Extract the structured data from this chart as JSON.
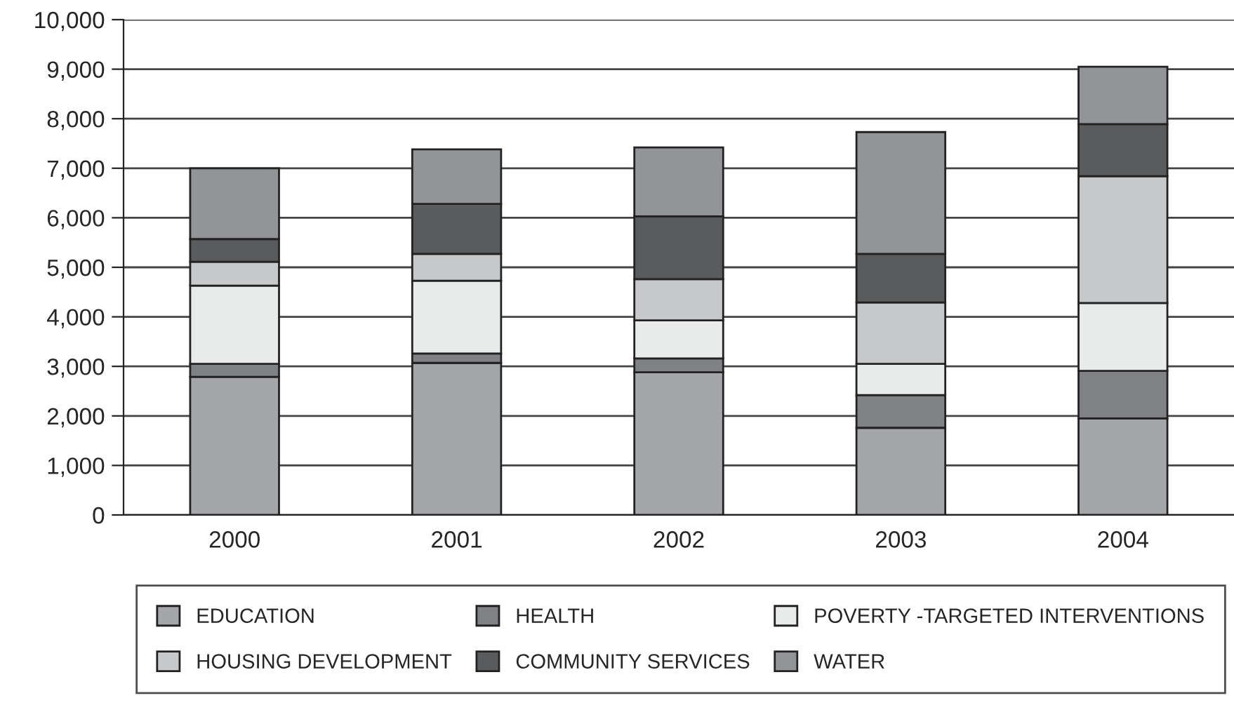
{
  "chart_data": {
    "type": "bar",
    "stacked": true,
    "categories": [
      "2000",
      "2001",
      "2002",
      "2003",
      "2004"
    ],
    "series": [
      {
        "name": "EDUCATION",
        "color": "#a5a6aa",
        "values": [
          2790,
          3070,
          2880,
          1760,
          1950
        ]
      },
      {
        "name": "HEALTH",
        "color": "#808185",
        "values": [
          260,
          190,
          280,
          660,
          960
        ]
      },
      {
        "name": "POVERTY -TARGETED INTERVENTIONS",
        "color": "#e9eaea",
        "values": [
          1580,
          1470,
          770,
          630,
          1370
        ]
      },
      {
        "name": "HOUSING DEVELOPMENT",
        "color": "#c7c8ca",
        "values": [
          480,
          540,
          830,
          1240,
          2560
        ]
      },
      {
        "name": "COMMUNITY SERVICES",
        "color": "#5a5b5d",
        "values": [
          460,
          1010,
          1270,
          980,
          1050
        ]
      },
      {
        "name": "WATER",
        "color": "#939497",
        "values": [
          1430,
          1100,
          1390,
          2460,
          1160
        ]
      }
    ],
    "ylim": [
      0,
      10000
    ],
    "yticks": [
      {
        "value": 0,
        "label": "0"
      },
      {
        "value": 1000,
        "label": "1,000"
      },
      {
        "value": 2000,
        "label": "2,000"
      },
      {
        "value": 3000,
        "label": "3,000"
      },
      {
        "value": 4000,
        "label": "4,000"
      },
      {
        "value": 5000,
        "label": "5,000"
      },
      {
        "value": 6000,
        "label": "6,000"
      },
      {
        "value": 7000,
        "label": "7,000"
      },
      {
        "value": 8000,
        "label": "8,000"
      },
      {
        "value": 9000,
        "label": "9,000"
      },
      {
        "value": 10000,
        "label": "10,000"
      }
    ],
    "grid": "y",
    "legend": "bottom"
  }
}
